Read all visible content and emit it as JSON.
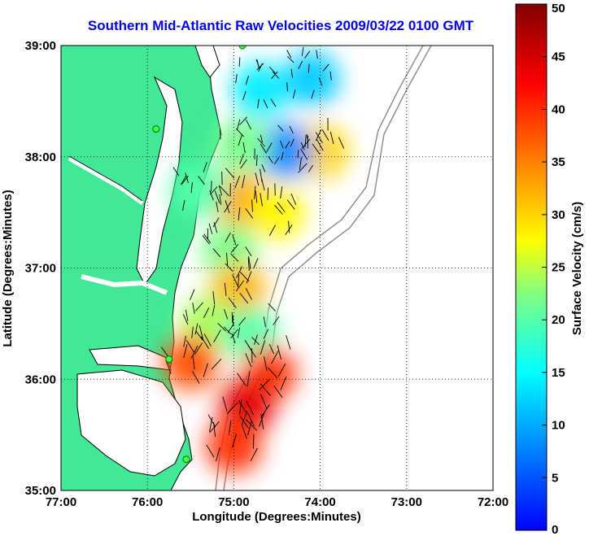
{
  "title": "Southern Mid-Atlantic Raw Velocities 2009/03/22 0100 GMT",
  "x_axis": {
    "label": "Longitude (Degrees:Minutes)",
    "ticks": [
      "77:00",
      "76:00",
      "75:00",
      "74:00",
      "73:00",
      "72:00"
    ]
  },
  "y_axis": {
    "label": "Latitude (Degrees:Minutes)",
    "ticks": [
      "39:00",
      "38:00",
      "37:00",
      "36:00",
      "35:00"
    ]
  },
  "colorbar": {
    "label": "Surface Velocity (cm/s)",
    "ticks": [
      "50",
      "45",
      "40",
      "35",
      "30",
      "25",
      "20",
      "15",
      "10",
      "5",
      "0"
    ],
    "min": 0,
    "max": 50,
    "colormap": [
      "#0000ff",
      "#0080ff",
      "#00ffff",
      "#80ff80",
      "#ffff00",
      "#ff8000",
      "#ff0000",
      "#800000"
    ]
  },
  "map": {
    "lon_range": [
      -77,
      -72
    ],
    "lat_range": [
      35,
      39
    ],
    "land_color": "#40e898",
    "ocean_color": "#ffffff",
    "grid": "dotted",
    "sites": [
      {
        "lon": -74.9,
        "lat": 39.0
      },
      {
        "lon": -75.9,
        "lat": 38.25
      },
      {
        "lon": -75.75,
        "lat": 36.18
      },
      {
        "lon": -75.55,
        "lat": 35.28
      }
    ]
  },
  "velocity_patches": [
    {
      "lon": -74.0,
      "lat": 38.05,
      "v": 30
    },
    {
      "lon": -74.4,
      "lat": 38.05,
      "v": 8
    },
    {
      "lon": -74.7,
      "lat": 38.6,
      "v": 14
    },
    {
      "lon": -74.1,
      "lat": 38.7,
      "v": 12
    },
    {
      "lon": -74.9,
      "lat": 38.1,
      "v": 22
    },
    {
      "lon": -74.9,
      "lat": 37.6,
      "v": 33
    },
    {
      "lon": -75.4,
      "lat": 37.7,
      "v": 20
    },
    {
      "lon": -74.5,
      "lat": 37.5,
      "v": 28
    },
    {
      "lon": -75.05,
      "lat": 37.15,
      "v": 22
    },
    {
      "lon": -74.95,
      "lat": 36.8,
      "v": 32
    },
    {
      "lon": -75.3,
      "lat": 36.5,
      "v": 24
    },
    {
      "lon": -74.8,
      "lat": 36.4,
      "v": 20
    },
    {
      "lon": -74.6,
      "lat": 36.05,
      "v": 40
    },
    {
      "lon": -74.85,
      "lat": 35.75,
      "v": 44
    },
    {
      "lon": -75.0,
      "lat": 35.4,
      "v": 40
    },
    {
      "lon": -75.5,
      "lat": 36.15,
      "v": 38
    }
  ]
}
